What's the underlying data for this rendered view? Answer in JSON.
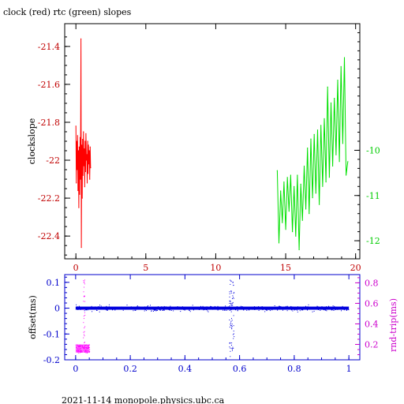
{
  "title": "clock (red) rtc (green) slopes",
  "footer": "2021-11-14 monopole.physics.ubc.ca",
  "chart_data": [
    {
      "type": "line",
      "title": "clock (red) rtc (green) slopes",
      "xlabel": "",
      "ylabel": "clockslope",
      "y2label": "",
      "xlim": [
        -0.8,
        20.3
      ],
      "ylim": [
        -22.52,
        -21.28
      ],
      "y2lim": [
        -12.4,
        -7.2
      ],
      "xticks": [
        "0",
        "5",
        "10",
        "15",
        "20"
      ],
      "yticks": [
        "-22.4",
        "-22.2",
        "-22",
        "-21.8",
        "-21.6",
        "-21.4"
      ],
      "y2ticks": [
        "-12",
        "-11",
        "-10"
      ],
      "grid": false,
      "colors": {
        "clock": "#ff0000",
        "rtc": "#00e000",
        "axis_left": "#c00000",
        "axis_right": "#00cc00",
        "frame": "#000000"
      },
      "series": [
        {
          "name": "clock",
          "axis": "left",
          "x": [
            0.0,
            0.03,
            0.06,
            0.09,
            0.12,
            0.15,
            0.18,
            0.21,
            0.24,
            0.27,
            0.3,
            0.33,
            0.36,
            0.39,
            0.42,
            0.45,
            0.48,
            0.51,
            0.54,
            0.57,
            0.6,
            0.63,
            0.66,
            0.69,
            0.72,
            0.75,
            0.78,
            0.81,
            0.84,
            0.87,
            0.9,
            0.93,
            0.96,
            0.99,
            1.02,
            1.05
          ],
          "y": [
            -21.82,
            -22.12,
            -21.9,
            -22.05,
            -21.87,
            -22.16,
            -21.95,
            -22.25,
            -21.93,
            -22.18,
            -21.88,
            -22.1,
            -21.36,
            -22.46,
            -21.92,
            -22.2,
            -21.89,
            -22.08,
            -21.85,
            -22.03,
            -21.94,
            -22.14,
            -21.9,
            -22.06,
            -21.86,
            -22.0,
            -21.97,
            -22.12,
            -21.9,
            -22.07,
            -21.92,
            -22.02,
            -21.95,
            -22.1,
            -21.93,
            -22.04
          ]
        },
        {
          "name": "rtc",
          "axis": "right",
          "x": [
            14.4,
            14.52,
            14.64,
            14.76,
            14.88,
            15.0,
            15.12,
            15.24,
            15.36,
            15.48,
            15.6,
            15.72,
            15.84,
            15.96,
            16.08,
            16.2,
            16.32,
            16.44,
            16.56,
            16.68,
            16.8,
            16.92,
            17.04,
            17.16,
            17.28,
            17.4,
            17.52,
            17.64,
            17.76,
            17.88,
            18.0,
            18.12,
            18.24,
            18.36,
            18.48,
            18.6,
            18.72,
            18.84,
            18.96,
            19.08,
            19.2,
            19.32,
            19.44
          ],
          "y": [
            -10.45,
            -12.05,
            -10.9,
            -11.6,
            -10.7,
            -11.75,
            -10.6,
            -11.35,
            -10.55,
            -11.8,
            -10.8,
            -11.9,
            -10.55,
            -12.2,
            -10.75,
            -11.55,
            -10.35,
            -11.3,
            -9.95,
            -11.4,
            -9.75,
            -11.05,
            -9.65,
            -10.95,
            -9.55,
            -11.2,
            -9.45,
            -10.8,
            -9.3,
            -10.7,
            -8.6,
            -10.6,
            -8.95,
            -10.35,
            -8.85,
            -10.1,
            -8.45,
            -10.25,
            -8.15,
            -9.85,
            -7.95,
            -10.55,
            -10.25
          ]
        }
      ]
    },
    {
      "type": "scatter",
      "xlabel": "",
      "ylabel": "offset(ms)",
      "y2label": "rnd-trip(ms)",
      "xlim": [
        -0.04,
        1.04
      ],
      "ylim": [
        -0.2,
        0.13
      ],
      "y2lim": [
        0.05,
        0.88
      ],
      "xticks": [
        "0",
        "0.2",
        "0.4",
        "0.6",
        "0.8",
        "1"
      ],
      "yticks": [
        "-0.2",
        "-0.1",
        "0",
        "0.1"
      ],
      "y2ticks": [
        "0.2",
        "0.4",
        "0.6",
        "0.8"
      ],
      "grid": false,
      "colors": {
        "offset": "#0000dd",
        "rndtrip": "#ff00ff",
        "axis_left": "#0000cc",
        "axis_right": "#cc00cc"
      },
      "series": [
        {
          "name": "offset",
          "axis": "left",
          "band": {
            "x": [
              0.0,
              1.0
            ],
            "center": 0.0,
            "halfwidth": 0.006
          },
          "spike": {
            "x": 0.57,
            "y": [
              -0.19,
              0.11
            ]
          }
        },
        {
          "name": "rnd-trip",
          "axis": "right",
          "cluster": {
            "x": [
              0.0,
              0.05
            ],
            "y": [
              0.12,
              0.2
            ]
          },
          "spike": {
            "x": 0.03,
            "y": [
              0.2,
              0.85
            ]
          }
        }
      ]
    }
  ]
}
